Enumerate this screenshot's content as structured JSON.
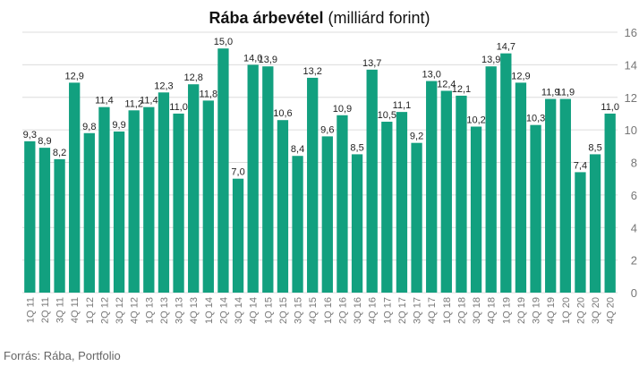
{
  "chart_data": {
    "type": "bar",
    "title_bold": "Rába árbevétel",
    "title_rest": " (milliárd forint)",
    "categories": [
      "1Q 11",
      "2Q 11",
      "3Q 11",
      "4Q 11",
      "1Q 12",
      "2Q 12",
      "3Q 12",
      "4Q 12",
      "1Q 13",
      "2Q 13",
      "3Q 13",
      "4Q 13",
      "1Q 14",
      "2Q 14",
      "3Q 14",
      "4Q 14",
      "1Q 15",
      "2Q 15",
      "3Q 15",
      "4Q 15",
      "1Q 16",
      "2Q 16",
      "3Q 16",
      "4Q 16",
      "1Q 17",
      "2Q 17",
      "3Q 17",
      "4Q 17",
      "1Q 18",
      "2Q 18",
      "3Q 18",
      "4Q 18",
      "1Q 19",
      "2Q 19",
      "3Q 19",
      "4Q 19",
      "1Q 20",
      "2Q 20",
      "3Q 20",
      "4Q 20"
    ],
    "values": [
      9.3,
      8.9,
      8.2,
      12.9,
      9.8,
      11.4,
      9.9,
      11.2,
      11.4,
      12.3,
      11.0,
      12.8,
      11.8,
      15.0,
      7.0,
      14.0,
      13.9,
      10.6,
      8.4,
      13.2,
      9.6,
      10.9,
      8.5,
      13.7,
      10.5,
      11.1,
      9.2,
      13.0,
      12.4,
      12.1,
      10.2,
      13.9,
      14.7,
      12.9,
      10.3,
      11.9,
      11.9,
      7.4,
      8.5,
      11.0
    ],
    "labels": [
      "9,3",
      "8,9",
      "8,2",
      "12,9",
      "9,8",
      "11,4",
      "9,9",
      "11,2",
      "11,4",
      "12,3",
      "11,0",
      "12,8",
      "11,8",
      "15,0",
      "7,0",
      "14,0",
      "13,9",
      "10,6",
      "8,4",
      "13,2",
      "9,6",
      "10,9",
      "8,5",
      "13,7",
      "10,5",
      "11,1",
      "9,2",
      "13,0",
      "12,4",
      "12,1",
      "10,2",
      "13,9",
      "14,7",
      "12,9",
      "10,3",
      "11,9",
      "11,9",
      "7,4",
      "8,5",
      "11,0"
    ],
    "yticks": [
      "0",
      "2",
      "4",
      "6",
      "8",
      "10",
      "12",
      "14",
      "16"
    ],
    "ylim": [
      0,
      16
    ],
    "y_axis_side": "right",
    "grid": true,
    "bar_color": "#12a07f",
    "source": "Forrás: Rába, Portfolio"
  }
}
